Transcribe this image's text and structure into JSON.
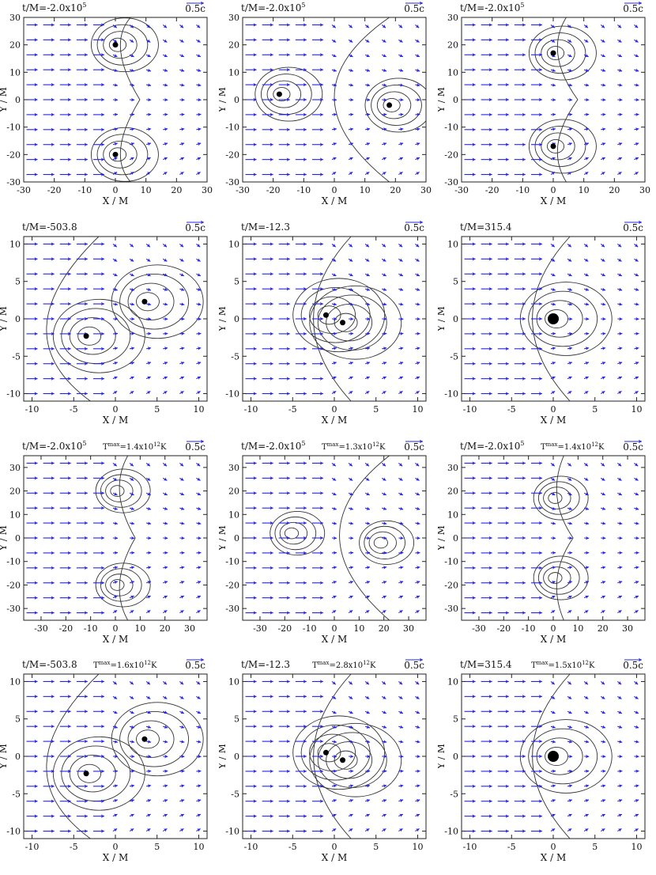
{
  "figure": {
    "rows": [
      {
        "scheme": "density",
        "panels": [
          {
            "id": "r1c1",
            "time": "t/M=-2.0x10",
            "time_exp": "5",
            "temp": "",
            "temp_exp": "",
            "temp_unit": "",
            "scale": "0.5c",
            "xlim": [
              -30,
              30
            ],
            "ylim": [
              -30,
              30
            ],
            "xticks": [
              "-30",
              "-20",
              "-10",
              "0",
              "10",
              "20",
              "30"
            ],
            "yticks": [
              "30",
              "20",
              "10",
              "0",
              "-10",
              "-20",
              "-30"
            ],
            "xlabel": "X / M",
            "ylabel": "Y / M",
            "holes": [
              [
                0,
                20,
                "small"
              ],
              [
                0,
                -20,
                "small"
              ]
            ],
            "shock": "pinched"
          },
          {
            "id": "r1c2",
            "time": "t/M=-2.0x10",
            "time_exp": "5",
            "temp": "",
            "temp_exp": "",
            "temp_unit": "",
            "scale": "0.5c",
            "xlim": [
              -30,
              30
            ],
            "ylim": [
              -30,
              30
            ],
            "xticks": [
              "-30",
              "-20",
              "-10",
              "0",
              "10",
              "20",
              "30"
            ],
            "yticks": [
              "30",
              "20",
              "10",
              "0",
              "-10",
              "-20",
              "-30"
            ],
            "xlabel": "X / M",
            "ylabel": "Y / M",
            "holes": [
              [
                -18,
                2,
                "small"
              ],
              [
                18,
                -2,
                "small"
              ]
            ],
            "shock": "cone"
          },
          {
            "id": "r1c3",
            "time": "t/M=-2.0x10",
            "time_exp": "5",
            "temp": "",
            "temp_exp": "",
            "temp_unit": "",
            "scale": "0.5c",
            "xlim": [
              -30,
              30
            ],
            "ylim": [
              -30,
              30
            ],
            "xticks": [
              "-30",
              "-20",
              "-10",
              "0",
              "10",
              "20",
              "30"
            ],
            "yticks": [
              "30",
              "20",
              "10",
              "0",
              "-10",
              "-20",
              "-30"
            ],
            "xlabel": "X / M",
            "ylabel": "Y / M",
            "holes": [
              [
                0,
                17,
                "small"
              ],
              [
                0,
                -17,
                "small"
              ]
            ],
            "shock": "pinched"
          }
        ]
      },
      {
        "scheme": "density",
        "panels": [
          {
            "id": "r2c1",
            "time": "t/M=-503.8",
            "time_exp": "",
            "temp": "",
            "temp_exp": "",
            "temp_unit": "",
            "scale": "0.5c",
            "xlim": [
              -11,
              11
            ],
            "ylim": [
              -11,
              11
            ],
            "xticks": [
              "-10",
              "-5",
              "0",
              "5",
              "10"
            ],
            "yticks": [
              "10",
              "5",
              "0",
              "-5",
              "-10"
            ],
            "xlabel": "X / M",
            "ylabel": "Y / M",
            "holes": [
              [
                3.5,
                2.3,
                "small"
              ],
              [
                -3.5,
                -2.3,
                "small"
              ]
            ],
            "shock": "wide"
          },
          {
            "id": "r2c2",
            "time": "t/M=-12.3",
            "time_exp": "",
            "temp": "",
            "temp_exp": "",
            "temp_unit": "",
            "scale": "0.5c",
            "xlim": [
              -11,
              11
            ],
            "ylim": [
              -11,
              11
            ],
            "xticks": [
              "-10",
              "-5",
              "0",
              "5",
              "10"
            ],
            "yticks": [
              "10",
              "5",
              "0",
              "-5",
              "-10"
            ],
            "xlabel": "X / M",
            "ylabel": "Y / M",
            "holes": [
              [
                -1,
                0.5,
                "small"
              ],
              [
                1,
                -0.5,
                "small"
              ]
            ],
            "shock": "close"
          },
          {
            "id": "r2c3",
            "time": "t/M=315.4",
            "time_exp": "",
            "temp": "",
            "temp_exp": "",
            "temp_unit": "",
            "scale": "0.5c",
            "xlim": [
              -11,
              11
            ],
            "ylim": [
              -11,
              11
            ],
            "xticks": [
              "-10",
              "-5",
              "0",
              "5",
              "10"
            ],
            "yticks": [
              "10",
              "5",
              "0",
              "-5",
              "-10"
            ],
            "xlabel": "X / M",
            "ylabel": "Y / M",
            "holes": [
              [
                0,
                0,
                "big"
              ]
            ],
            "shock": "close"
          }
        ]
      },
      {
        "scheme": "temperature",
        "panels": [
          {
            "id": "r3c1",
            "time": "t/M=-2.0x10",
            "time_exp": "5",
            "temp": "T",
            "temp_exp": "max",
            "temp_unit": "=1.4x10",
            "temp_pow": "12",
            "temp_k": "K",
            "scale": "0.5c",
            "xlim": [
              -37,
              37
            ],
            "ylim": [
              -35,
              35
            ],
            "xticks": [
              "-30",
              "-20",
              "-10",
              "0",
              "10",
              "20",
              "30"
            ],
            "yticks": [
              "30",
              "20",
              "10",
              "0",
              "-10",
              "-20",
              "-30"
            ],
            "xlabel": "X / M",
            "ylabel": "Y / M",
            "holes": [
              [
                0,
                20,
                "none"
              ],
              [
                0,
                -20,
                "none"
              ]
            ],
            "shock": "pinched"
          },
          {
            "id": "r3c2",
            "time": "t/M=-2.0x10",
            "time_exp": "5",
            "temp": "T",
            "temp_exp": "max",
            "temp_unit": "=1.3x10",
            "temp_pow": "12",
            "temp_k": "K",
            "scale": "0.5c",
            "xlim": [
              -37,
              37
            ],
            "ylim": [
              -35,
              35
            ],
            "xticks": [
              "-30",
              "-20",
              "-10",
              "0",
              "10",
              "20",
              "30"
            ],
            "yticks": [
              "30",
              "20",
              "10",
              "0",
              "-10",
              "-20",
              "-30"
            ],
            "xlabel": "X / M",
            "ylabel": "Y / M",
            "holes": [
              [
                -18,
                2,
                "none"
              ],
              [
                18,
                -2,
                "none"
              ]
            ],
            "shock": "cone"
          },
          {
            "id": "r3c3",
            "time": "t/M=-2.0x10",
            "time_exp": "5",
            "temp": "T",
            "temp_exp": "max",
            "temp_unit": "=1.4x10",
            "temp_pow": "12",
            "temp_k": "K",
            "scale": "0.5c",
            "xlim": [
              -37,
              37
            ],
            "ylim": [
              -35,
              35
            ],
            "xticks": [
              "-30",
              "-20",
              "-10",
              "0",
              "10",
              "20",
              "30"
            ],
            "yticks": [
              "30",
              "20",
              "10",
              "0",
              "-10",
              "-20",
              "-30"
            ],
            "xlabel": "X / M",
            "ylabel": "Y / M",
            "holes": [
              [
                0,
                17,
                "none"
              ],
              [
                0,
                -17,
                "none"
              ]
            ],
            "shock": "pinched"
          }
        ]
      },
      {
        "scheme": "temperature",
        "panels": [
          {
            "id": "r4c1",
            "time": "t/M=-503.8",
            "time_exp": "",
            "temp": "T",
            "temp_exp": "max",
            "temp_unit": "=1.6x10",
            "temp_pow": "12",
            "temp_k": "K",
            "scale": "0.5c",
            "xlim": [
              -11,
              11
            ],
            "ylim": [
              -11,
              11
            ],
            "xticks": [
              "-10",
              "-5",
              "0",
              "5",
              "10"
            ],
            "yticks": [
              "10",
              "5",
              "0",
              "-5",
              "-10"
            ],
            "xlabel": "X / M",
            "ylabel": "Y / M",
            "holes": [
              [
                3.5,
                2.3,
                "small"
              ],
              [
                -3.5,
                -2.3,
                "small"
              ]
            ],
            "shock": "wide"
          },
          {
            "id": "r4c2",
            "time": "t/M=-12.3",
            "time_exp": "",
            "temp": "T",
            "temp_exp": "max",
            "temp_unit": "=2.8x10",
            "temp_pow": "12",
            "temp_k": "K",
            "scale": "0.5c",
            "xlim": [
              -11,
              11
            ],
            "ylim": [
              -11,
              11
            ],
            "xticks": [
              "-10",
              "-5",
              "0",
              "5",
              "10"
            ],
            "yticks": [
              "10",
              "5",
              "0",
              "-5",
              "-10"
            ],
            "xlabel": "X / M",
            "ylabel": "Y / M",
            "holes": [
              [
                -1,
                0.5,
                "small"
              ],
              [
                1,
                -0.5,
                "small"
              ]
            ],
            "shock": "close"
          },
          {
            "id": "r4c3",
            "time": "t/M=315.4",
            "time_exp": "",
            "temp": "T",
            "temp_exp": "max",
            "temp_unit": "=1.5x10",
            "temp_pow": "12",
            "temp_k": "K",
            "scale": "0.5c",
            "xlim": [
              -11,
              11
            ],
            "ylim": [
              -11,
              11
            ],
            "xticks": [
              "-10",
              "-5",
              "0",
              "5",
              "10"
            ],
            "yticks": [
              "10",
              "5",
              "0",
              "-5",
              "-10"
            ],
            "xlabel": "X / M",
            "ylabel": "Y / M",
            "holes": [
              [
                0,
                0,
                "big"
              ]
            ],
            "shock": "close"
          }
        ]
      }
    ]
  },
  "colors": {
    "density": [
      "#fdf1ef",
      "#f8dcd8",
      "#f0c3bd",
      "#e4a39b",
      "#d2827a"
    ],
    "temperature": [
      "#eefaea",
      "#d2f2c8",
      "#a9e49a",
      "#7fd66c",
      "#55c446",
      "#35b52c"
    ],
    "arrow": "#2323e6",
    "hole": "#000000"
  }
}
